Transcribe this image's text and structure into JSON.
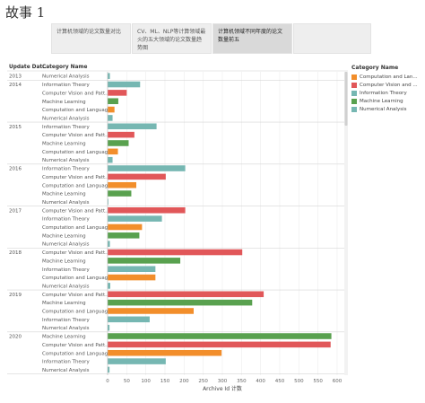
{
  "story": {
    "title": "故事 1"
  },
  "tabs": [
    {
      "label": "计算机领域的论文数量对比",
      "active": false
    },
    {
      "label": "CV、ML、NLP等计算领域最火的五大领域的论文数量趋势图",
      "active": false
    },
    {
      "label": "计算机领域不同年度的论文数量前五",
      "active": true
    },
    {
      "label": "",
      "active": false
    }
  ],
  "colors": {
    "Computation and Language": "#f28e2b",
    "Computer Vision and Pattern Recognition": "#e15759",
    "Information Theory": "#76b7b2",
    "Machine Learning": "#59a14f",
    "Numerical Analysis": "#76b7b2"
  },
  "legend": {
    "title": "Category Name",
    "items": [
      {
        "label": "Computation and Lan...",
        "color": "#f28e2b"
      },
      {
        "label": "Computer Vision and ...",
        "color": "#e15759"
      },
      {
        "label": "Information Theory",
        "color": "#76b7b2"
      },
      {
        "label": "Machine Learning",
        "color": "#59a14f"
      },
      {
        "label": "Numerical Analysis",
        "color": "#76b7b2"
      }
    ]
  },
  "chart_data": {
    "type": "bar",
    "orientation": "horizontal",
    "row_header_1": "Update Dat..",
    "row_header_2": "Category Name",
    "xlabel": "Archive Id 计数",
    "xlim": [
      0,
      600
    ],
    "xticks": [
      0,
      50,
      100,
      150,
      200,
      250,
      300,
      350,
      400,
      450,
      500,
      550,
      600
    ],
    "grid": true,
    "groups": [
      {
        "year": "2013",
        "rows": [
          {
            "category": "Numerical Analysis",
            "label": "Numerical Analysis",
            "value": 6
          }
        ]
      },
      {
        "year": "2014",
        "rows": [
          {
            "category": "Information Theory",
            "label": "Information Theory",
            "value": 85
          },
          {
            "category": "Computer Vision and Pattern Recognition",
            "label": "Computer Vision and Patt..",
            "value": 50
          },
          {
            "category": "Machine Learning",
            "label": "Machine Learning",
            "value": 28
          },
          {
            "category": "Computation and Language",
            "label": "Computation and Language",
            "value": 18
          },
          {
            "category": "Numerical Analysis",
            "label": "Numerical Analysis",
            "value": 13
          }
        ]
      },
      {
        "year": "2015",
        "rows": [
          {
            "category": "Information Theory",
            "label": "Information Theory",
            "value": 128
          },
          {
            "category": "Computer Vision and Pattern Recognition",
            "label": "Computer Vision and Patt..",
            "value": 70
          },
          {
            "category": "Machine Learning",
            "label": "Machine Learning",
            "value": 55
          },
          {
            "category": "Computation and Language",
            "label": "Computation and Language",
            "value": 27
          },
          {
            "category": "Numerical Analysis",
            "label": "Numerical Analysis",
            "value": 13
          }
        ]
      },
      {
        "year": "2016",
        "rows": [
          {
            "category": "Information Theory",
            "label": "Information Theory",
            "value": 203
          },
          {
            "category": "Computer Vision and Pattern Recognition",
            "label": "Computer Vision and Patt..",
            "value": 152
          },
          {
            "category": "Computation and Language",
            "label": "Computation and Language",
            "value": 75
          },
          {
            "category": "Machine Learning",
            "label": "Machine Learning",
            "value": 62
          },
          {
            "category": "Numerical Analysis",
            "label": "Numerical Analysis",
            "value": 2
          }
        ]
      },
      {
        "year": "2017",
        "rows": [
          {
            "category": "Computer Vision and Pattern Recognition",
            "label": "Computer Vision and Patt..",
            "value": 203
          },
          {
            "category": "Information Theory",
            "label": "Information Theory",
            "value": 142
          },
          {
            "category": "Computation and Language",
            "label": "Computation and Language",
            "value": 90
          },
          {
            "category": "Machine Learning",
            "label": "Machine Learning",
            "value": 83
          },
          {
            "category": "Numerical Analysis",
            "label": "Numerical Analysis",
            "value": 6
          }
        ]
      },
      {
        "year": "2018",
        "rows": [
          {
            "category": "Computer Vision and Pattern Recognition",
            "label": "Computer Vision and Patt..",
            "value": 352
          },
          {
            "category": "Machine Learning",
            "label": "Machine Learning",
            "value": 190
          },
          {
            "category": "Information Theory",
            "label": "Information Theory",
            "value": 125
          },
          {
            "category": "Computation and Language",
            "label": "Computation and Language",
            "value": 125
          },
          {
            "category": "Numerical Analysis",
            "label": "Numerical Analysis",
            "value": 7
          }
        ]
      },
      {
        "year": "2019",
        "rows": [
          {
            "category": "Computer Vision and Pattern Recognition",
            "label": "Computer Vision and Patt..",
            "value": 408
          },
          {
            "category": "Machine Learning",
            "label": "Machine Learning",
            "value": 378
          },
          {
            "category": "Computation and Language",
            "label": "Computation and Language",
            "value": 225
          },
          {
            "category": "Information Theory",
            "label": "Information Theory",
            "value": 110
          },
          {
            "category": "Numerical Analysis",
            "label": "Numerical Analysis",
            "value": 5
          }
        ]
      },
      {
        "year": "2020",
        "rows": [
          {
            "category": "Machine Learning",
            "label": "Machine Learning",
            "value": 585
          },
          {
            "category": "Computer Vision and Pattern Recognition",
            "label": "Computer Vision and Patt..",
            "value": 583
          },
          {
            "category": "Computation and Language",
            "label": "Computation and Language",
            "value": 298
          },
          {
            "category": "Information Theory",
            "label": "Information Theory",
            "value": 152
          },
          {
            "category": "Numerical Analysis",
            "label": "Numerical Analysis",
            "value": 5
          }
        ]
      }
    ]
  }
}
